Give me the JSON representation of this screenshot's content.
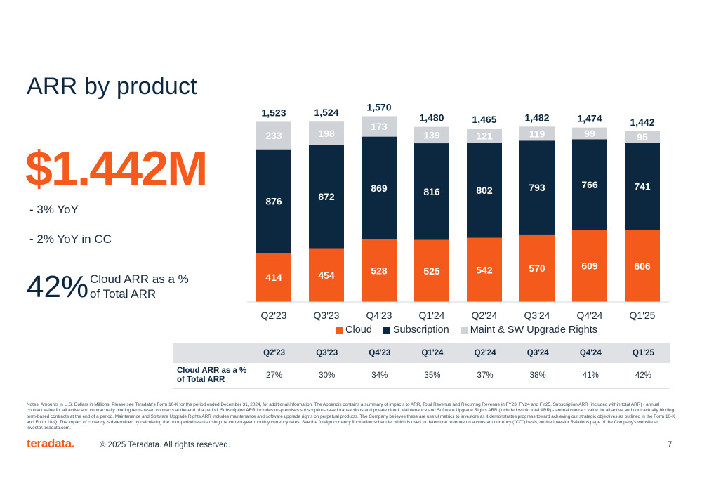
{
  "title": "ARR by product",
  "headline_value": "$1.442M",
  "bullets": [
    "- 3% YoY",
    "- 2% YoY in CC"
  ],
  "cloud_pct": {
    "value": "42%",
    "label_line1": "Cloud ARR as a %",
    "label_line2": "of Total ARR"
  },
  "colors": {
    "cloud": "#f45a1c",
    "subscription": "#0c2740",
    "maint": "#cfd3d8"
  },
  "chart_data": {
    "type": "bar",
    "stacked": true,
    "categories": [
      "Q2'23",
      "Q3'23",
      "Q4'23",
      "Q1'24",
      "Q2'24",
      "Q3'24",
      "Q4'24",
      "Q1'25"
    ],
    "totals": [
      "1,523",
      "1,524",
      "1,570",
      "1,480",
      "1,465",
      "1,482",
      "1,474",
      "1,442"
    ],
    "series": [
      {
        "name": "Cloud",
        "color": "#f45a1c",
        "values": [
          414,
          454,
          528,
          525,
          542,
          570,
          609,
          606
        ]
      },
      {
        "name": "Subscription",
        "color": "#0c2740",
        "values": [
          876,
          872,
          869,
          816,
          802,
          793,
          766,
          741
        ]
      },
      {
        "name": "Maint & SW Upgrade Rights",
        "color": "#cfd3d8",
        "values": [
          233,
          198,
          173,
          139,
          121,
          119,
          99,
          95
        ]
      }
    ],
    "legend_position": "bottom",
    "grid": false
  },
  "table": {
    "headers": [
      "Q2'23",
      "Q3'23",
      "Q4'23",
      "Q1'24",
      "Q2'24",
      "Q3'24",
      "Q4'24",
      "Q1'25"
    ],
    "row_label_line1": "Cloud ARR as a %",
    "row_label_line2": "of Total ARR",
    "values": [
      "27%",
      "30%",
      "34%",
      "35%",
      "37%",
      "38%",
      "41%",
      "42%"
    ]
  },
  "notes": "Notes: Amounts in U.S. Dollars in Millions. Please see Teradata's Form 10-K for the period ended December 31, 2024, for additional information. The Appendix contains a summary of impacts to ARR, Total Revenue and Recurring Revenue in FY23, FY24 and FY25. Subscription ARR (included within total ARR) - annual contract value for all active and contractually binding term-based contracts at the end of a period. Subscription ARR includes on-premises subscription-based transactions and private cloud. Maintenance and Software Upgrade Rights ARR (included within total ARR) - annual contract value for all active and contractually binding term-based contracts at the end of a period. Maintenance and Software Upgrade Rights ARR includes maintenance and software upgrade rights on perpetual products. The Company believes these are useful metrics to investors as it demonstrates progress toward achieving our strategic objectives as outlined in the Form 10-K and Form 10-Q. The impact of currency is determined by calculating the prior-period results using the current-year monthly currency rates. See the foreign currency fluctuation schedule, which is used to determine revenue on a constant currency (\"CC\") basis, on the Investor Relations page of the Company's website at investor.teradata.com.",
  "footer": {
    "logo": "teradata.",
    "copyright": "© 2025 Teradata. All rights reserved.",
    "page": "7"
  }
}
